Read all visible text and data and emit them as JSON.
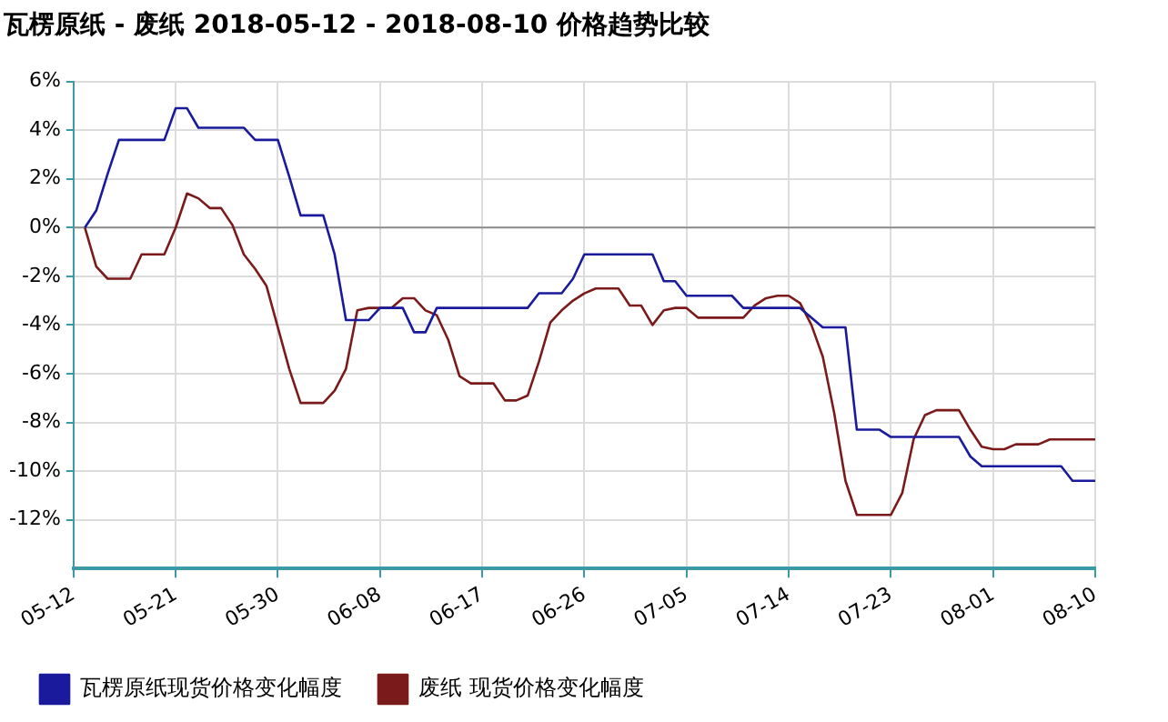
{
  "chart_data": {
    "type": "line",
    "title": "瓦楞原纸 - 废纸 2018-05-12 - 2018-08-10 价格趋势比较",
    "xlim": [
      "2018-05-12",
      "2018-08-10"
    ],
    "xticks": [
      {
        "value": "2018-05-12",
        "label": "05-12"
      },
      {
        "value": "2018-05-21",
        "label": "05-21"
      },
      {
        "value": "2018-05-30",
        "label": "05-30"
      },
      {
        "value": "2018-06-08",
        "label": "06-08"
      },
      {
        "value": "2018-06-17",
        "label": "06-17"
      },
      {
        "value": "2018-06-26",
        "label": "06-26"
      },
      {
        "value": "2018-07-05",
        "label": "07-05"
      },
      {
        "value": "2018-07-14",
        "label": "07-14"
      },
      {
        "value": "2018-07-23",
        "label": "07-23"
      },
      {
        "value": "2018-08-01",
        "label": "08-01"
      },
      {
        "value": "2018-08-10",
        "label": "08-10"
      }
    ],
    "ylim": [
      -14,
      6
    ],
    "yticks": [
      {
        "value": 6,
        "label": "6%"
      },
      {
        "value": 4,
        "label": "4%"
      },
      {
        "value": 2,
        "label": "2%"
      },
      {
        "value": 0,
        "label": "0%"
      },
      {
        "value": -2,
        "label": "-2%"
      },
      {
        "value": -4,
        "label": "-4%"
      },
      {
        "value": -6,
        "label": "-6%"
      },
      {
        "value": -8,
        "label": "-8%"
      },
      {
        "value": -10,
        "label": "-10%"
      },
      {
        "value": -12,
        "label": "-12%"
      }
    ],
    "grid": true,
    "legend": "bottom",
    "marker": "none",
    "line_style": "solid",
    "ref_lines": [
      {
        "axis": "y",
        "value": 0,
        "color": "#8c8c8c"
      }
    ],
    "series": [
      {
        "name": "瓦楞原纸现货价格变化幅度",
        "color": "#1a1a9c",
        "x": [
          "2018-05-13",
          "2018-05-14",
          "2018-05-15",
          "2018-05-16",
          "2018-05-20",
          "2018-05-21",
          "2018-05-22",
          "2018-05-23",
          "2018-05-27",
          "2018-05-28",
          "2018-05-30",
          "2018-05-31",
          "2018-06-01",
          "2018-06-03",
          "2018-06-04",
          "2018-06-05",
          "2018-06-07",
          "2018-06-08",
          "2018-06-10",
          "2018-06-11",
          "2018-06-12",
          "2018-06-13",
          "2018-06-21",
          "2018-06-22",
          "2018-06-24",
          "2018-06-25",
          "2018-06-26",
          "2018-07-02",
          "2018-07-03",
          "2018-07-04",
          "2018-07-05",
          "2018-07-09",
          "2018-07-10",
          "2018-07-15",
          "2018-07-17",
          "2018-07-19",
          "2018-07-20",
          "2018-07-22",
          "2018-07-23",
          "2018-07-29",
          "2018-07-30",
          "2018-07-31",
          "2018-08-07",
          "2018-08-08",
          "2018-08-10"
        ],
        "values": [
          0,
          0.7,
          2.2,
          3.6,
          3.6,
          4.9,
          4.9,
          4.1,
          4.1,
          3.6,
          3.6,
          2.1,
          0.5,
          0.5,
          -1.1,
          -3.8,
          -3.8,
          -3.3,
          -3.3,
          -4.3,
          -4.3,
          -3.3,
          -3.3,
          -2.7,
          -2.7,
          -2.1,
          -1.1,
          -1.1,
          -2.2,
          -2.2,
          -2.8,
          -2.8,
          -3.3,
          -3.3,
          -4.1,
          -4.1,
          -8.3,
          -8.3,
          -8.6,
          -8.6,
          -9.4,
          -9.8,
          -9.8,
          -10.4,
          -10.4
        ]
      },
      {
        "name": "废纸 现货价格变化幅度",
        "color": "#7a1a1a",
        "x": [
          "2018-05-13",
          "2018-05-14",
          "2018-05-15",
          "2018-05-17",
          "2018-05-18",
          "2018-05-20",
          "2018-05-21",
          "2018-05-22",
          "2018-05-23",
          "2018-05-24",
          "2018-05-25",
          "2018-05-26",
          "2018-05-27",
          "2018-05-28",
          "2018-05-29",
          "2018-05-30",
          "2018-05-31",
          "2018-06-01",
          "2018-06-03",
          "2018-06-04",
          "2018-06-05",
          "2018-06-06",
          "2018-06-07",
          "2018-06-09",
          "2018-06-10",
          "2018-06-11",
          "2018-06-12",
          "2018-06-13",
          "2018-06-14",
          "2018-06-15",
          "2018-06-16",
          "2018-06-18",
          "2018-06-19",
          "2018-06-20",
          "2018-06-21",
          "2018-06-22",
          "2018-06-23",
          "2018-06-24",
          "2018-06-25",
          "2018-06-26",
          "2018-06-27",
          "2018-06-29",
          "2018-06-30",
          "2018-07-01",
          "2018-07-02",
          "2018-07-03",
          "2018-07-04",
          "2018-07-05",
          "2018-07-06",
          "2018-07-10",
          "2018-07-11",
          "2018-07-12",
          "2018-07-13",
          "2018-07-14",
          "2018-07-15",
          "2018-07-16",
          "2018-07-17",
          "2018-07-18",
          "2018-07-19",
          "2018-07-20",
          "2018-07-23",
          "2018-07-24",
          "2018-07-25",
          "2018-07-26",
          "2018-07-27",
          "2018-07-29",
          "2018-07-30",
          "2018-07-31",
          "2018-08-01",
          "2018-08-02",
          "2018-08-03",
          "2018-08-05",
          "2018-08-06",
          "2018-08-10"
        ],
        "values": [
          0,
          -1.6,
          -2.1,
          -2.1,
          -1.1,
          -1.1,
          0,
          1.4,
          1.2,
          0.8,
          0.8,
          0.1,
          -1.1,
          -1.7,
          -2.4,
          -4.1,
          -5.8,
          -7.2,
          -7.2,
          -6.7,
          -5.8,
          -3.4,
          -3.3,
          -3.3,
          -2.9,
          -2.9,
          -3.4,
          -3.6,
          -4.6,
          -6.1,
          -6.4,
          -6.4,
          -7.1,
          -7.1,
          -6.9,
          -5.5,
          -3.9,
          -3.4,
          -3.0,
          -2.7,
          -2.5,
          -2.5,
          -3.2,
          -3.2,
          -4.0,
          -3.4,
          -3.3,
          -3.3,
          -3.7,
          -3.7,
          -3.2,
          -2.9,
          -2.8,
          -2.8,
          -3.1,
          -4.0,
          -5.3,
          -7.6,
          -10.4,
          -11.8,
          -11.8,
          -10.9,
          -8.7,
          -7.7,
          -7.5,
          -7.5,
          -8.3,
          -9.0,
          -9.1,
          -9.1,
          -8.9,
          -8.9,
          -8.7,
          -8.7
        ]
      }
    ]
  }
}
